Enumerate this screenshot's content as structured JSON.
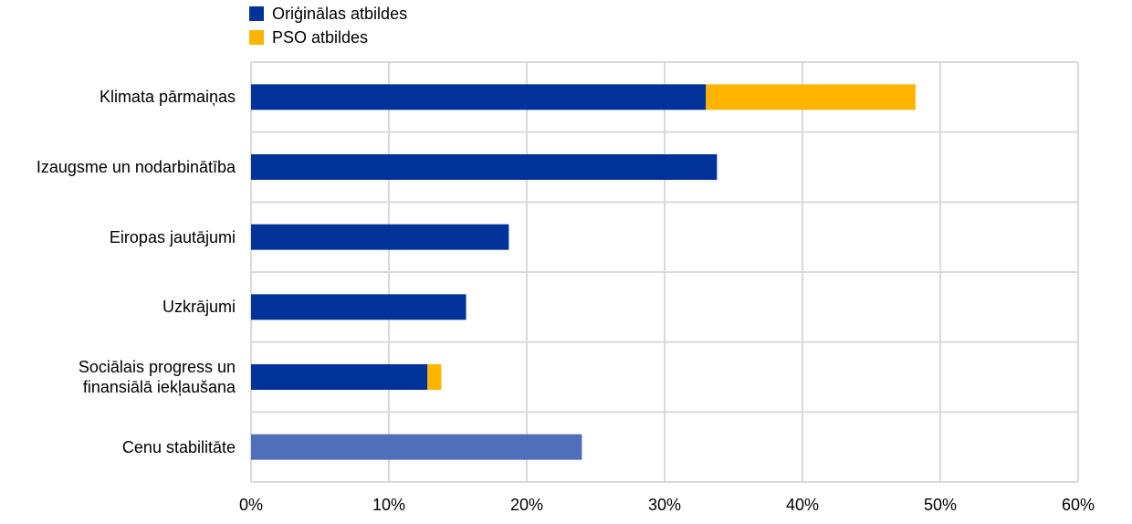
{
  "chart_data": {
    "type": "stacked_bar_horizontal",
    "categories": [
      "Klimata pārmaiņas",
      "Izaugsme un nodarbinātība",
      "Eiropas jautājumi",
      "Uzkrājumi",
      "Sociālais progress un\nfinansiālā iekļaušana",
      "Cenu stabilitāte"
    ],
    "series": [
      {
        "name": "Oriģinālas atbildes",
        "color": "#003299",
        "point_colors": [
          "#003299",
          "#003299",
          "#003299",
          "#003299",
          "#003299",
          "#4f6fba"
        ],
        "values": [
          33.0,
          33.8,
          18.7,
          15.6,
          12.8,
          24.0
        ]
      },
      {
        "name": "PSO atbildes",
        "color": "#ffb400",
        "values": [
          15.2,
          null,
          null,
          null,
          1.0,
          null
        ]
      }
    ],
    "xlim": [
      0,
      60
    ],
    "xticks": [
      {
        "value": 0,
        "label": "0%"
      },
      {
        "value": 10,
        "label": "10%"
      },
      {
        "value": 20,
        "label": "20%"
      },
      {
        "value": 30,
        "label": "30%"
      },
      {
        "value": 40,
        "label": "40%"
      },
      {
        "value": 50,
        "label": "50%"
      },
      {
        "value": 60,
        "label": "60%"
      }
    ],
    "grid": true
  }
}
